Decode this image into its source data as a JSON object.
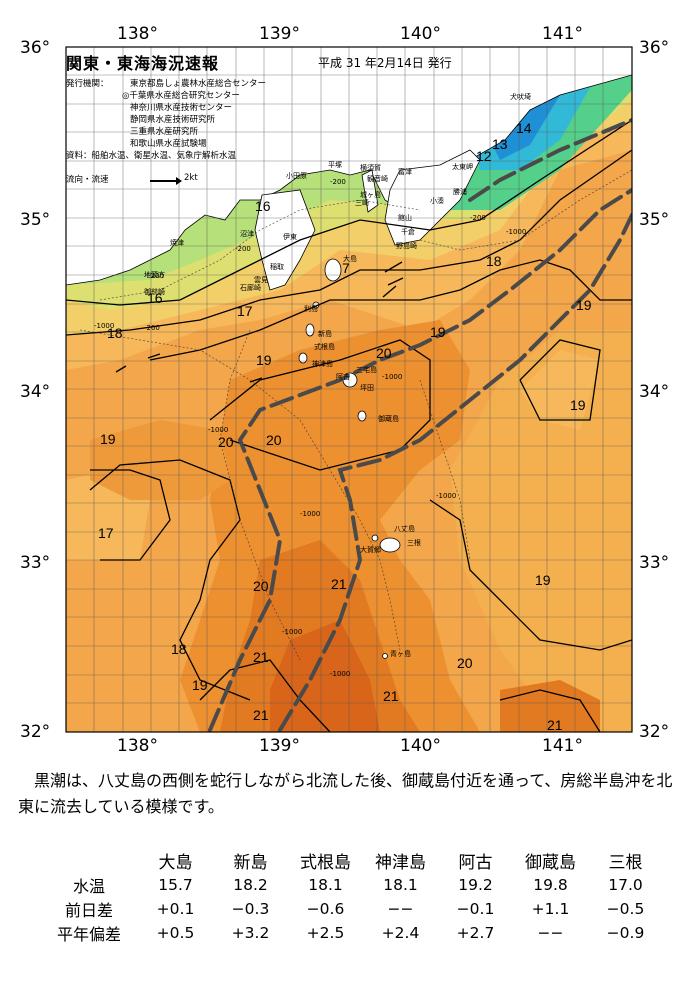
{
  "map": {
    "title": "関東・東海海況速報",
    "publication_date": "平成 31 年2月14日 発行",
    "issuers_label": "発行機関：",
    "issuers": [
      "東京都島しょ農林水産総合センター",
      "◎千葉県水産総合研究センター",
      "神奈川県水産技術センター",
      "静岡県水産技術研究所",
      "三重県水産研究所",
      "和歌山県水産試験場"
    ],
    "sources": "資料：船舶水温、衛星水温、気象庁解析水温",
    "legend_label": "流向・流速",
    "legend_speed": "2kt",
    "longitude_labels": [
      "138°",
      "139°",
      "140°",
      "141°"
    ],
    "latitude_labels": [
      "36°",
      "35°",
      "34°",
      "33°",
      "32°"
    ],
    "temperature_labels": [
      "7",
      "12",
      "13",
      "14",
      "16",
      "16",
      "17",
      "18",
      "18",
      "19",
      "19",
      "19",
      "20",
      "20",
      "19",
      "17",
      "20",
      "21",
      "19",
      "18",
      "21",
      "19",
      "21",
      "21",
      "20",
      "21"
    ],
    "depth_labels": [
      "-200",
      "-200",
      "-200",
      "-200",
      "-200",
      "-1000",
      "-1000",
      "-1000",
      "-1000",
      "-1000",
      "-1000",
      "-1000",
      "-1000"
    ],
    "place_names": [
      "犬吠埼",
      "太東岬",
      "勝浦",
      "小湊",
      "千倉",
      "野島崎",
      "館山",
      "富津",
      "横須賀",
      "観音崎",
      "三崎",
      "城ヶ島",
      "平塚",
      "小田原",
      "伊東",
      "稲取",
      "沼津",
      "雲見",
      "石廊崎",
      "焼津",
      "地頭方",
      "御前崎",
      "大島",
      "利島",
      "新島",
      "式根島",
      "神津島",
      "三宅島",
      "坪田",
      "阿古",
      "御蔵島",
      "八丈島",
      "三根",
      "大賀郷",
      "青ヶ島"
    ]
  },
  "description": "黒潮は、八丈島の西側を蛇行しながら北流した後、御蔵島付近を通って、房総半島沖を北東に流去している模様です。",
  "observations": {
    "columns": [
      "大島",
      "新島",
      "式根島",
      "神津島",
      "阿古",
      "御蔵島",
      "三根"
    ],
    "rows": [
      {
        "label": "水温",
        "values": [
          "15.7",
          "18.2",
          "18.1",
          "18.1",
          "19.2",
          "19.8",
          "17.0"
        ]
      },
      {
        "label": "前日差",
        "values": [
          "+0.1",
          "−0.3",
          "−0.6",
          "−−",
          "−0.1",
          "+1.1",
          "−0.5"
        ]
      },
      {
        "label": "平年偏差",
        "values": [
          "+0.5",
          "+3.2",
          "+2.5",
          "+2.4",
          "+2.7",
          "−−",
          "−0.9"
        ]
      }
    ]
  }
}
